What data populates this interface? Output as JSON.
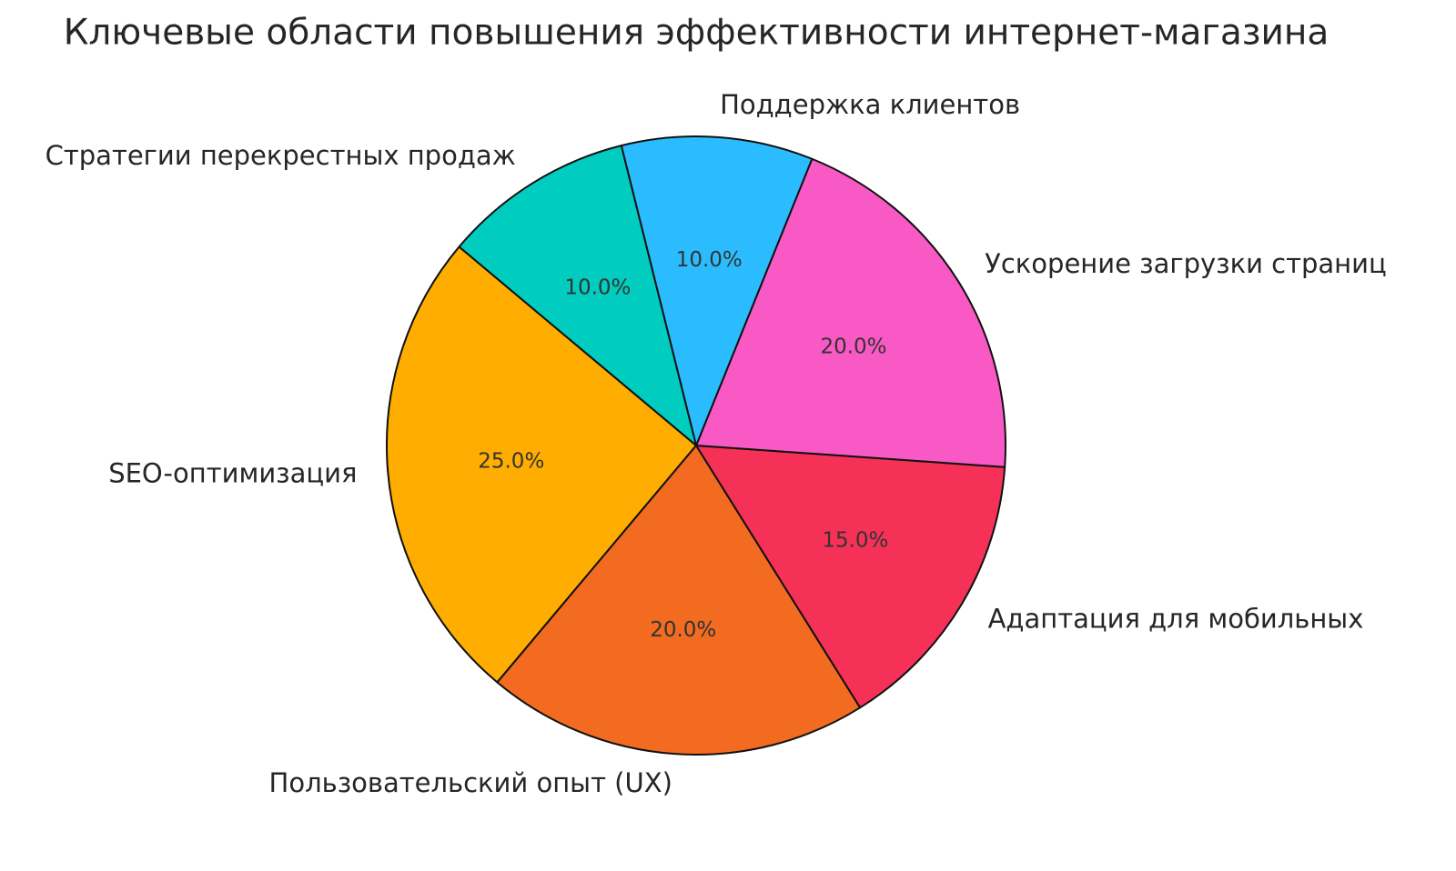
{
  "chart_data": {
    "type": "pie",
    "title": "Ключевые области повышения эффективности интернет-магазина",
    "categories": [
      "SEO-оптимизация",
      "Пользовательский опыт (UX)",
      "Адаптация для мобильных",
      "Ускорение загрузки страниц",
      "Поддержка клиентов",
      "Стратегии перекрестных продаж"
    ],
    "values": [
      25,
      20,
      15,
      20,
      10,
      10
    ],
    "value_labels": [
      "25.0%",
      "20.0%",
      "15.0%",
      "20.0%",
      "10.0%",
      "10.0%"
    ],
    "colors": [
      "#ffad00",
      "#f26b21",
      "#f53157",
      "#f859c4",
      "#2bbcff",
      "#00ccbf"
    ]
  }
}
